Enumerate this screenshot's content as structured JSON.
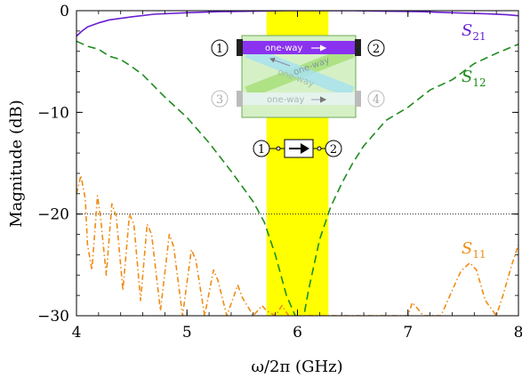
{
  "chart_data": {
    "type": "line",
    "title": "",
    "xlabel": "ω/2π (GHz)",
    "ylabel": "Magnitude (dB)",
    "xlim": [
      4,
      8
    ],
    "ylim": [
      -30,
      0
    ],
    "x_ticks": [
      4,
      5,
      6,
      7,
      8
    ],
    "y_ticks": [
      0,
      -10,
      -20,
      -30
    ],
    "x_tick_labels": [
      "4",
      "5",
      "6",
      "7",
      "8"
    ],
    "y_tick_labels": [
      "0",
      "−10",
      "−20",
      "−30"
    ],
    "grid": false,
    "reference_line": {
      "y": -20,
      "style": "dotted"
    },
    "highlight_band": {
      "x": [
        5.72,
        6.28
      ],
      "color": "#ffff00"
    },
    "series": [
      {
        "name": "S21",
        "label_main": "S",
        "label_sub": "21",
        "color": "#6a1fd0",
        "style": "solid",
        "x": [
          4.0,
          4.05,
          4.1,
          4.2,
          4.3,
          4.5,
          4.7,
          5.0,
          5.3,
          5.6,
          5.9,
          6.2,
          6.5,
          6.8,
          7.1,
          7.4,
          7.7,
          7.9,
          8.0
        ],
        "y": [
          -2.5,
          -2.0,
          -1.6,
          -1.2,
          -0.9,
          -0.6,
          -0.35,
          -0.2,
          -0.1,
          -0.05,
          0.0,
          0.0,
          0.0,
          -0.05,
          -0.1,
          -0.2,
          -0.3,
          -0.4,
          -0.5
        ]
      },
      {
        "name": "S12",
        "label_main": "S",
        "label_sub": "12",
        "color": "#1e8c1e",
        "style": "dashed",
        "x": [
          4.0,
          4.1,
          4.2,
          4.3,
          4.4,
          4.5,
          4.6,
          4.8,
          5.0,
          5.2,
          5.4,
          5.6,
          5.7,
          5.8,
          5.9,
          6.0,
          6.05,
          6.1,
          6.2,
          6.3,
          6.4,
          6.5,
          6.6,
          6.8,
          7.0,
          7.2,
          7.4,
          7.6,
          7.8,
          8.0
        ],
        "y": [
          -3.0,
          -3.5,
          -3.8,
          -4.5,
          -4.8,
          -5.5,
          -6.3,
          -8.5,
          -10.5,
          -13.0,
          -15.8,
          -18.8,
          -20.8,
          -24.0,
          -28.0,
          -30.5,
          -30.5,
          -27.5,
          -22.5,
          -19.3,
          -17.0,
          -15.0,
          -13.3,
          -10.8,
          -9.5,
          -7.8,
          -6.8,
          -5.2,
          -4.2,
          -3.3
        ]
      },
      {
        "name": "S11",
        "label_main": "S",
        "label_sub": "11",
        "color": "#f08c14",
        "style": "dashdot",
        "x": [
          4.0,
          4.04,
          4.08,
          4.1,
          4.14,
          4.19,
          4.22,
          4.27,
          4.32,
          4.36,
          4.42,
          4.48,
          4.52,
          4.58,
          4.64,
          4.68,
          4.76,
          4.84,
          4.88,
          4.96,
          5.04,
          5.08,
          5.16,
          5.24,
          5.28,
          5.36,
          5.46,
          5.5,
          5.6,
          5.68,
          5.72,
          5.8,
          5.86,
          5.92,
          6.0,
          7.0,
          7.04,
          7.08,
          7.14,
          7.2,
          7.3,
          7.4,
          7.48,
          7.56,
          7.62,
          7.7,
          7.8,
          7.86,
          7.94,
          8.0
        ],
        "y": [
          -18.0,
          -16.2,
          -18.5,
          -23.0,
          -25.5,
          -18.2,
          -20.5,
          -26.0,
          -19.0,
          -20.2,
          -27.5,
          -20.0,
          -21.0,
          -28.5,
          -21.0,
          -22.0,
          -29.5,
          -22.0,
          -23.2,
          -30.0,
          -23.5,
          -24.5,
          -30.0,
          -25.5,
          -26.5,
          -30.0,
          -27.0,
          -28.2,
          -30.0,
          -29.0,
          -29.5,
          -30.0,
          -29.0,
          -30.0,
          -30.0,
          -30.0,
          -28.7,
          -29.2,
          -30.0,
          -30.0,
          -30.0,
          -27.5,
          -25.6,
          -24.8,
          -25.5,
          -28.5,
          -30.0,
          -28.0,
          -25.0,
          -23.0
        ]
      }
    ],
    "inset": {
      "ports": [
        "1",
        "2",
        "3",
        "4"
      ],
      "path_labels": [
        "one-way",
        "one-way",
        "one-way",
        "one-way"
      ],
      "symbol_ports": [
        "1",
        "2"
      ]
    }
  }
}
